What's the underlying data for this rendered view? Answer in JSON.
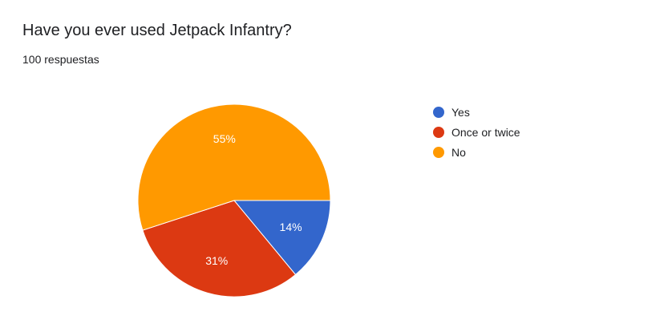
{
  "question": {
    "title": "Have you ever used Jetpack Infantry?",
    "response_count": "100 respuestas"
  },
  "colors": {
    "yes": "#3366cc",
    "once_or_twice": "#dc3912",
    "no": "#ff9900",
    "slice_border": "#ffffff",
    "label_text": "#ffffff"
  },
  "chart_data": {
    "type": "pie",
    "start": "3 o'clock, clockwise",
    "legend_position": "right",
    "slices": [
      {
        "label": "Yes",
        "value": 14,
        "display": "14%",
        "color": "#3366cc"
      },
      {
        "label": "Once or twice",
        "value": 31,
        "display": "31%",
        "color": "#dc3912"
      },
      {
        "label": "No",
        "value": 55,
        "display": "55%",
        "color": "#ff9900"
      }
    ]
  }
}
